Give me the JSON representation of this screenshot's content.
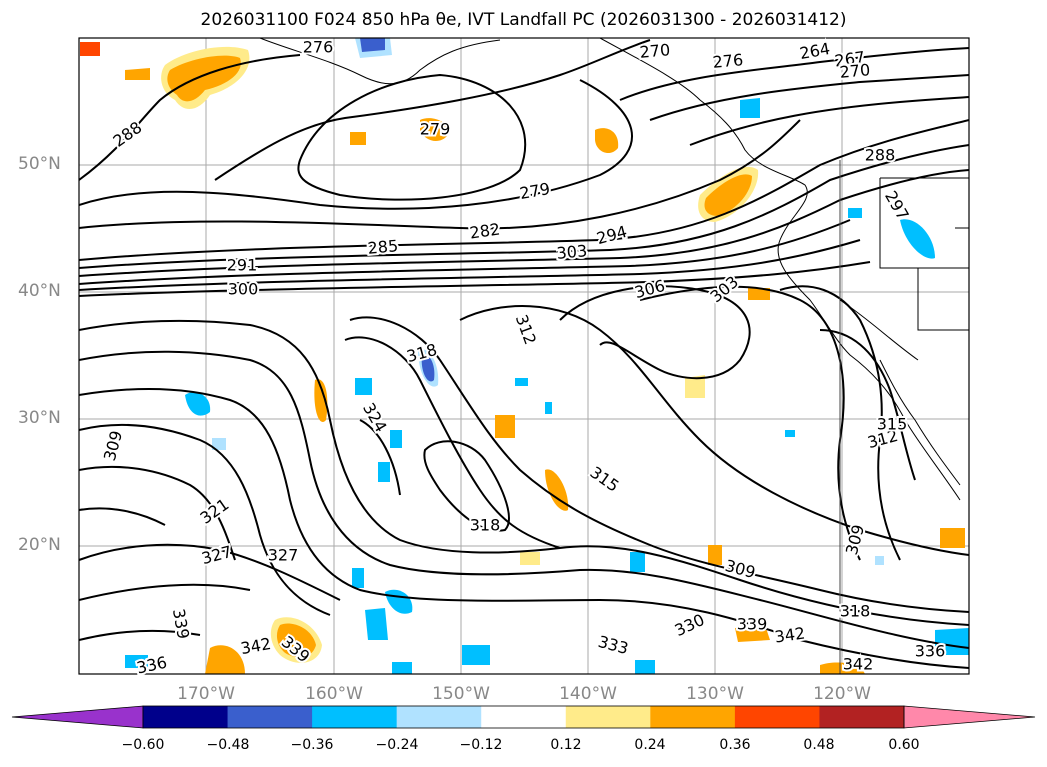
{
  "title": "2026031100 F024 850 hPa θe, IVT Landfall PC (2026031300 - 2026031412)",
  "axes": {
    "lat_labels": [
      "50°N",
      "40°N",
      "30°N",
      "20°N"
    ],
    "lon_labels": [
      "170°W",
      "160°W",
      "150°W",
      "140°W",
      "130°W",
      "120°W"
    ]
  },
  "contour_labels": [
    {
      "text": "276"
    },
    {
      "text": "270"
    },
    {
      "text": "276"
    },
    {
      "text": "264"
    },
    {
      "text": "267"
    },
    {
      "text": "270"
    },
    {
      "text": "288"
    },
    {
      "text": "279"
    },
    {
      "text": "288"
    },
    {
      "text": "279"
    },
    {
      "text": "282"
    },
    {
      "text": "285"
    },
    {
      "text": "294"
    },
    {
      "text": "303"
    },
    {
      "text": "291"
    },
    {
      "text": "297"
    },
    {
      "text": "300"
    },
    {
      "text": "306"
    },
    {
      "text": "303"
    },
    {
      "text": "312"
    },
    {
      "text": "318"
    },
    {
      "text": "324"
    },
    {
      "text": "309"
    },
    {
      "text": "315"
    },
    {
      "text": "312"
    },
    {
      "text": "315"
    },
    {
      "text": "321"
    },
    {
      "text": "318"
    },
    {
      "text": "327"
    },
    {
      "text": "327"
    },
    {
      "text": "309"
    },
    {
      "text": "309"
    },
    {
      "text": "318"
    },
    {
      "text": "339"
    },
    {
      "text": "330"
    },
    {
      "text": "339"
    },
    {
      "text": "342"
    },
    {
      "text": "333"
    },
    {
      "text": "342"
    },
    {
      "text": "339"
    },
    {
      "text": "336"
    },
    {
      "text": "342"
    },
    {
      "text": "336"
    }
  ],
  "colorbar": {
    "colors": [
      "#9932cc",
      "#00008b",
      "#3a5fcd",
      "#00bfff",
      "#b0e2ff",
      "#ffffff",
      "#ffeb8a",
      "#ffa500",
      "#ff4500",
      "#b22222",
      "#ff88aa"
    ],
    "tick_labels": [
      "−0.60",
      "−0.48",
      "−0.36",
      "−0.24",
      "−0.12",
      "0.12",
      "0.24",
      "0.36",
      "0.48",
      "0.60"
    ]
  }
}
